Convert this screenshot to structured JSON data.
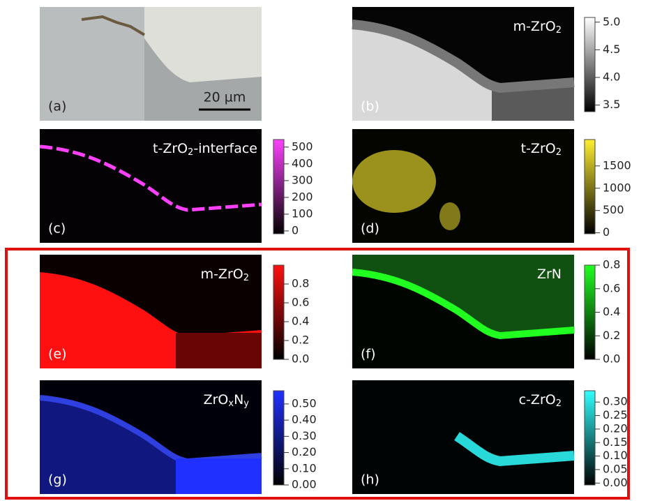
{
  "panels": [
    {
      "label": "(a)",
      "scale_bar": "20 µm"
    },
    {
      "label": "(b)",
      "title": [
        "m-ZrO",
        "2"
      ],
      "colorbar": [
        "5.0",
        "4.5",
        "4.0",
        "3.5"
      ]
    },
    {
      "label": "(c)",
      "title": [
        "t-ZrO",
        "2",
        "-interface"
      ],
      "colorbar": [
        "500",
        "400",
        "300",
        "200",
        "100",
        "0"
      ]
    },
    {
      "label": "(d)",
      "title": [
        "t-ZrO",
        "2"
      ],
      "colorbar": [
        "1500",
        "1000",
        "500",
        "0"
      ]
    },
    {
      "label": "(e)",
      "title": [
        "m-ZrO",
        "2"
      ],
      "colorbar": [
        "0.8",
        "0.6",
        "0.4",
        "0.2",
        "0.0"
      ]
    },
    {
      "label": "(f)",
      "title": [
        "ZrN"
      ],
      "colorbar": [
        "0.8",
        "0.6",
        "0.4",
        "0.2",
        "0.0"
      ]
    },
    {
      "label": "(g)",
      "title": [
        "ZrO",
        "x",
        "N",
        "y"
      ],
      "colorbar": [
        "0.50",
        "0.40",
        "0.30",
        "0.20",
        "0.10",
        "0.00"
      ]
    },
    {
      "label": "(h)",
      "title": [
        "c-ZrO",
        "2"
      ],
      "colorbar": [
        "0.30",
        "0.25",
        "0.20",
        "0.15",
        "0.10",
        "0.05",
        "0.00"
      ]
    }
  ]
}
